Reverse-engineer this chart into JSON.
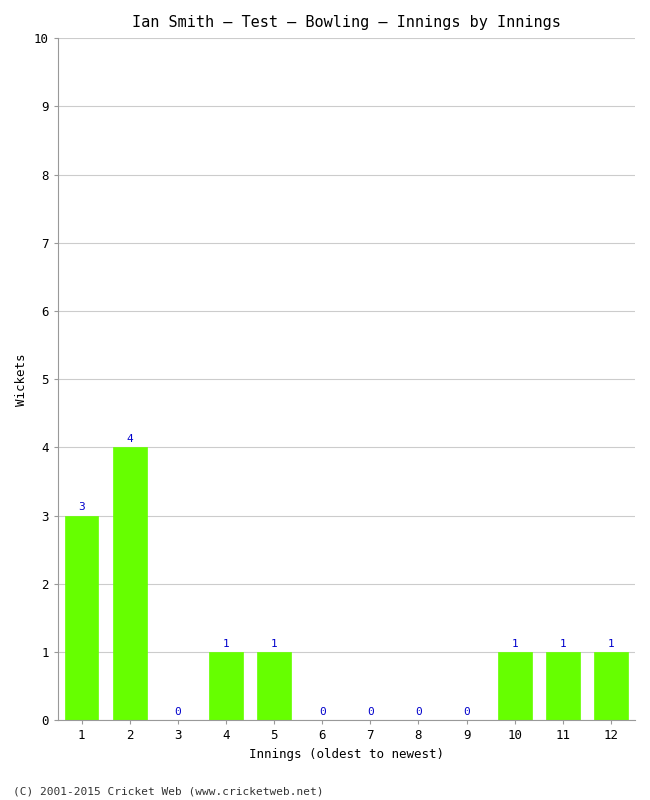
{
  "title": "Ian Smith – Test – Bowling – Innings by Innings",
  "xlabel": "Innings (oldest to newest)",
  "ylabel": "Wickets",
  "categories": [
    "1",
    "2",
    "3",
    "4",
    "5",
    "6",
    "7",
    "8",
    "9",
    "10",
    "11",
    "12"
  ],
  "values": [
    3,
    4,
    0,
    1,
    1,
    0,
    0,
    0,
    0,
    1,
    1,
    1
  ],
  "bar_color": "#66ff00",
  "bar_edge_color": "#66ff00",
  "label_color": "#0000cc",
  "ylim": [
    0,
    10
  ],
  "yticks": [
    0,
    1,
    2,
    3,
    4,
    5,
    6,
    7,
    8,
    9,
    10
  ],
  "background_color": "#ffffff",
  "grid_color": "#cccccc",
  "title_fontsize": 11,
  "axis_label_fontsize": 9,
  "tick_fontsize": 9,
  "bar_label_fontsize": 8,
  "footer": "(C) 2001-2015 Cricket Web (www.cricketweb.net)"
}
